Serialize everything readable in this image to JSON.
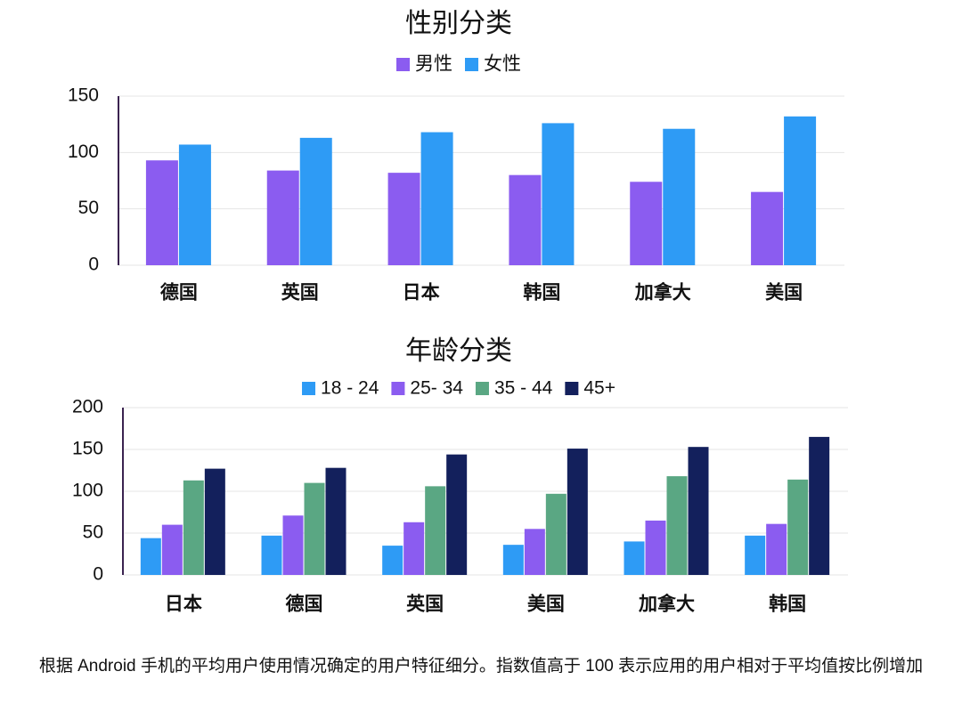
{
  "chart_data": [
    {
      "type": "bar",
      "title": "性别分类",
      "categories": [
        "德国",
        "英国",
        "日本",
        "韩国",
        "加拿大",
        "美国"
      ],
      "series": [
        {
          "name": "男性",
          "color": "#8b5cf0",
          "values": [
            93,
            84,
            82,
            80,
            74,
            65
          ]
        },
        {
          "name": "女性",
          "color": "#2e9bf5",
          "values": [
            107,
            113,
            118,
            126,
            121,
            132
          ]
        }
      ],
      "ylim": [
        0,
        150
      ],
      "yticks": [
        0,
        50,
        100,
        150
      ],
      "grid": true
    },
    {
      "type": "bar",
      "title": "年龄分类",
      "categories": [
        "日本",
        "德国",
        "英国",
        "美国",
        "加拿大",
        "韩国"
      ],
      "series": [
        {
          "name": "18 - 24",
          "color": "#2e9bf5",
          "values": [
            44,
            47,
            35,
            36,
            40,
            47
          ]
        },
        {
          "name": "25- 34",
          "color": "#8b5cf0",
          "values": [
            60,
            71,
            63,
            55,
            65,
            61
          ]
        },
        {
          "name": "35 - 44",
          "color": "#5aa783",
          "values": [
            113,
            110,
            106,
            97,
            118,
            114
          ]
        },
        {
          "name": "45+",
          "color": "#13205c",
          "values": [
            127,
            128,
            144,
            151,
            153,
            165
          ]
        }
      ],
      "ylim": [
        0,
        200
      ],
      "yticks": [
        0,
        50,
        100,
        150,
        200
      ],
      "grid": true
    }
  ],
  "caption": "根据 Android 手机的平均用户使用情况确定的用户特征细分。指数值高于 100 表示应用的用户相对于平均值按比例增加"
}
